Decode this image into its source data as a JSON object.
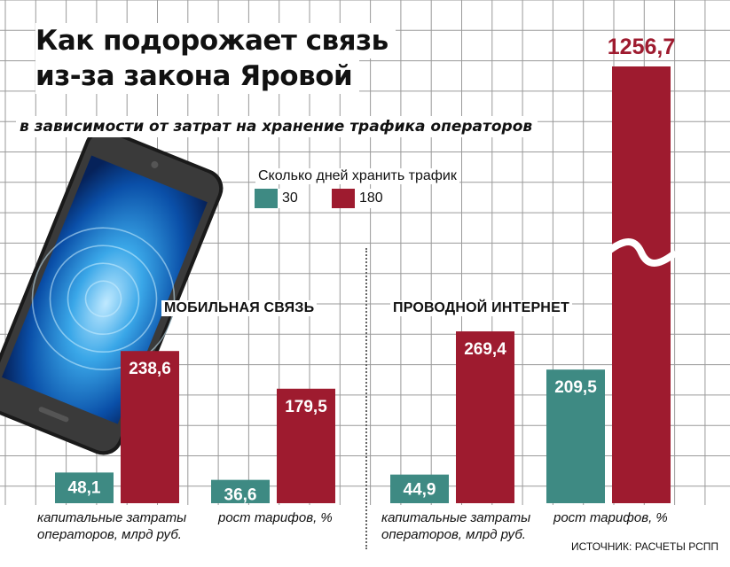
{
  "title_lines": [
    "Как подорожает связь",
    "из-за закона Яровой"
  ],
  "subtitle": "в зависимости от затрат на хранение трафика операторов",
  "legend": {
    "title": "Сколько дней хранить трафик",
    "items": [
      {
        "label": "30",
        "color": "#3e8a83"
      },
      {
        "label": "180",
        "color": "#9e1b2f"
      }
    ]
  },
  "source": "ИСТОЧНИК: РАСЧЕТЫ РСПП",
  "chart_data": {
    "type": "bar",
    "series_names": [
      "30",
      "180"
    ],
    "colors": {
      "30": "#3e8a83",
      "180": "#9e1b2f"
    },
    "scale_break_above": 300,
    "sections": [
      {
        "title": "МОБИЛЬНАЯ СВЯЗЬ",
        "groups": [
          {
            "label_lines": [
              "капитальные затраты",
              "операторов, млрд руб."
            ],
            "values": {
              "30": 48.1,
              "180": 238.6
            },
            "value_labels": {
              "30": "48,1",
              "180": "238,6"
            }
          },
          {
            "label_lines": [
              "рост тарифов, %"
            ],
            "values": {
              "30": 36.6,
              "180": 179.5
            },
            "value_labels": {
              "30": "36,6",
              "180": "179,5"
            }
          }
        ]
      },
      {
        "title": "ПРОВОДНОЙ ИНТЕРНЕТ",
        "groups": [
          {
            "label_lines": [
              "капитальные затраты",
              "операторов, млрд руб."
            ],
            "values": {
              "30": 44.9,
              "180": 269.4
            },
            "value_labels": {
              "30": "44,9",
              "180": "269,4"
            }
          },
          {
            "label_lines": [
              "рост тарифов, %"
            ],
            "values": {
              "30": 209.5,
              "180": 1256.7
            },
            "value_labels": {
              "30": "209,5",
              "180": "1256,7"
            }
          }
        ]
      }
    ]
  }
}
